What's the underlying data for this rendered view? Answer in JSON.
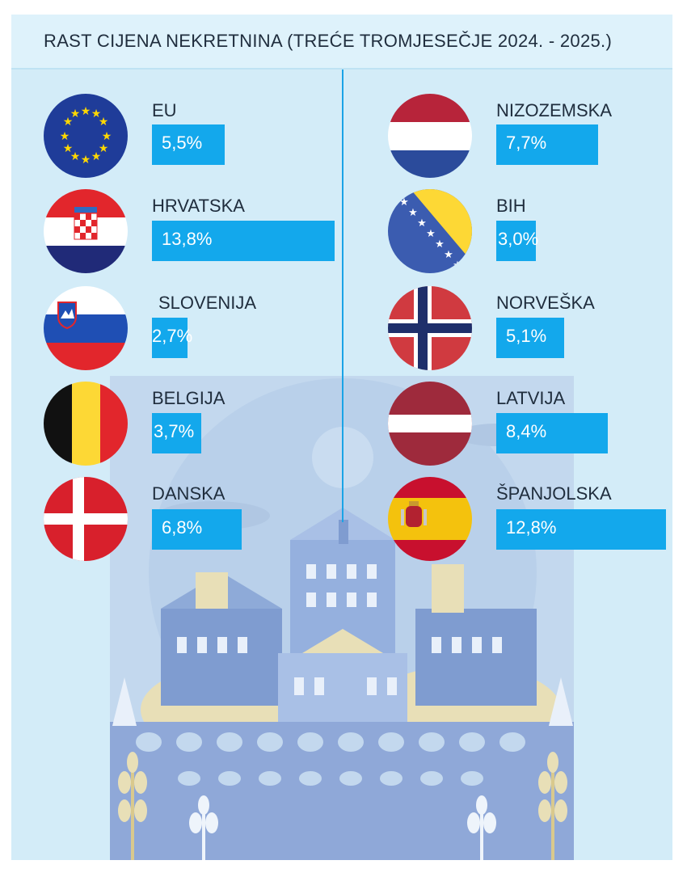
{
  "title": "RAST CIJENA NEKRETNINA (TREĆE TROMJESEČJE 2024. - 2025.)",
  "colors": {
    "bar": "#13a8ec",
    "background": "#d3ecf8",
    "divider": "#1aa3e6"
  },
  "chart_data": {
    "type": "bar",
    "title": "RAST CIJENA NEKRETNINA (TREĆE TROMJESEČJE 2024. - 2025.)",
    "categories": [
      "EU",
      "HRVATSKA",
      "SLOVENIJA",
      "BELGIJA",
      "DANSKA",
      "NIZOZEMSKA",
      "BIH",
      "NORVEŠKA",
      "LATVIJA",
      "ŠPANJOLSKA"
    ],
    "values": [
      5.5,
      13.8,
      2.7,
      3.7,
      6.8,
      7.7,
      3.0,
      5.1,
      8.4,
      12.8
    ],
    "value_labels": [
      "5,5%",
      "13,8%",
      "2,7%",
      "3,7%",
      "6,8%",
      "7,7%",
      "3,0%",
      "5,1%",
      "8,4%",
      "12,8%"
    ],
    "flags": [
      "eu-flag-icon",
      "croatia-flag-icon",
      "slovenia-flag-icon",
      "belgium-flag-icon",
      "denmark-flag-icon",
      "netherlands-flag-icon",
      "bosnia-flag-icon",
      "norway-flag-icon",
      "latvia-flag-icon",
      "spain-flag-icon"
    ],
    "unit": "%"
  }
}
